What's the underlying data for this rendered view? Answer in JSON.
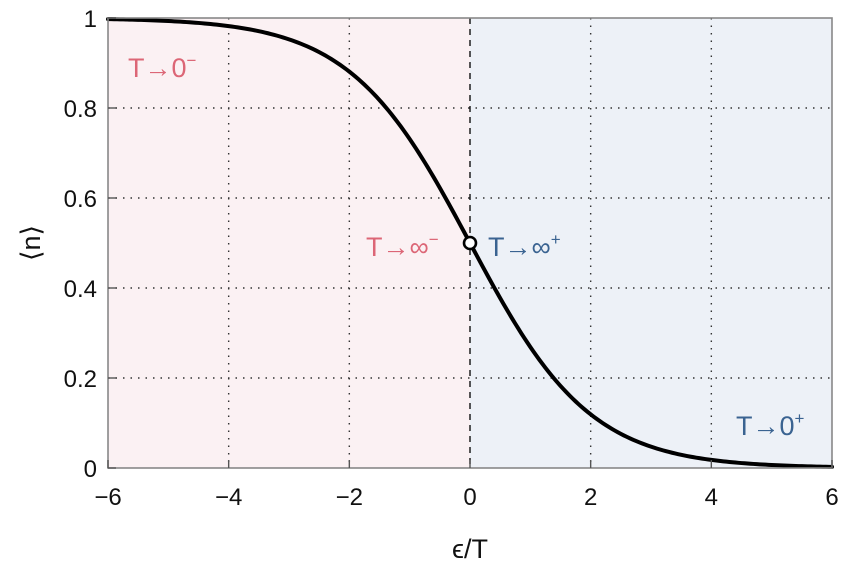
{
  "chart_data": {
    "type": "line",
    "title": "",
    "xlabel": "ϵ/T",
    "ylabel": "⟨n⟩",
    "xlim": [
      -6,
      6
    ],
    "ylim": [
      0,
      1
    ],
    "x_ticks": [
      -6,
      -4,
      -2,
      0,
      2,
      4,
      6
    ],
    "y_ticks": [
      0,
      0.2,
      0.4,
      0.6,
      0.8,
      1
    ],
    "x_tick_labels": [
      "−6",
      "−4",
      "−2",
      "0",
      "2",
      "4",
      "6"
    ],
    "y_tick_labels": [
      "0",
      "0.2",
      "0.4",
      "0.6",
      "0.8",
      "1"
    ],
    "grid": true,
    "grid_style": "dotted",
    "series": [
      {
        "function": "1/(exp(x)+1)",
        "color": "#000000",
        "x": [
          -6,
          -5,
          -4,
          -3,
          -2,
          -1,
          -0.5,
          0,
          0.5,
          1,
          2,
          3,
          4,
          5,
          6
        ],
        "values": [
          0.998,
          0.993,
          0.982,
          0.953,
          0.881,
          0.731,
          0.622,
          0.5,
          0.378,
          0.269,
          0.119,
          0.047,
          0.018,
          0.007,
          0.002
        ]
      }
    ],
    "marked_point": {
      "x": 0,
      "y": 0.5,
      "style": "open-circle"
    },
    "vertical_line": {
      "x": 0,
      "style": "dashed"
    },
    "regions": [
      {
        "x_range": [
          -6,
          0
        ],
        "color": "#fbf1f3"
      },
      {
        "x_range": [
          0,
          6
        ],
        "color": "#edf1f7"
      }
    ],
    "annotations": [
      {
        "base": "T→0",
        "sup": "−",
        "color": "#dc6676",
        "near": "top-left"
      },
      {
        "base": "T→∞",
        "sup": "−",
        "color": "#dc6676",
        "near": "left of midpoint"
      },
      {
        "base": "T→∞",
        "sup": "+",
        "color": "#3a6391",
        "near": "right of midpoint"
      },
      {
        "base": "T→0",
        "sup": "+",
        "color": "#3a6391",
        "near": "bottom-right"
      }
    ],
    "colors": {
      "curve": "#000000",
      "negative_label": "#dc6676",
      "positive_label": "#3a6391",
      "frame": "#888888",
      "grid": "#333333"
    }
  }
}
